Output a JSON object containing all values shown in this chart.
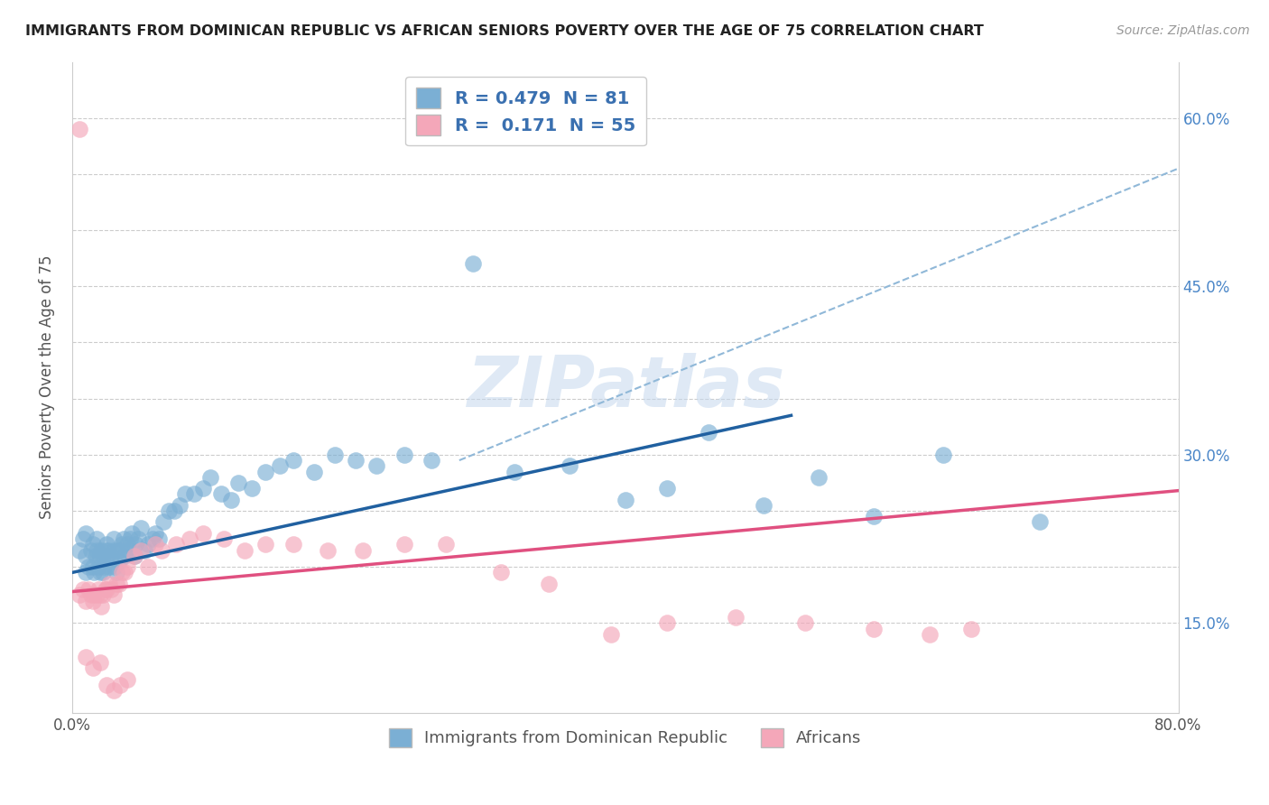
{
  "title": "IMMIGRANTS FROM DOMINICAN REPUBLIC VS AFRICAN SENIORS POVERTY OVER THE AGE OF 75 CORRELATION CHART",
  "source": "Source: ZipAtlas.com",
  "ylabel": "Seniors Poverty Over the Age of 75",
  "xlim": [
    0.0,
    0.8
  ],
  "ylim": [
    0.07,
    0.65
  ],
  "blue_color": "#7bafd4",
  "pink_color": "#f4a7b9",
  "blue_line_color": "#2060a0",
  "pink_line_color": "#e05080",
  "dash_line_color": "#90b8d8",
  "legend_blue_label": "R = 0.479  N = 81",
  "legend_pink_label": "R =  0.171  N = 55",
  "legend_blue_series": "Immigrants from Dominican Republic",
  "legend_pink_series": "Africans",
  "watermark": "ZIPatlas",
  "blue_line_x0": 0.0,
  "blue_line_y0": 0.195,
  "blue_line_x1": 0.52,
  "blue_line_y1": 0.335,
  "pink_line_x0": 0.0,
  "pink_line_y0": 0.178,
  "pink_line_x1": 0.8,
  "pink_line_y1": 0.268,
  "dash_line_x0": 0.28,
  "dash_line_y0": 0.295,
  "dash_line_x1": 0.8,
  "dash_line_y1": 0.555,
  "blue_scatter_x": [
    0.005,
    0.008,
    0.01,
    0.01,
    0.01,
    0.012,
    0.014,
    0.015,
    0.015,
    0.016,
    0.017,
    0.018,
    0.018,
    0.019,
    0.02,
    0.02,
    0.021,
    0.022,
    0.022,
    0.023,
    0.024,
    0.025,
    0.025,
    0.026,
    0.027,
    0.028,
    0.03,
    0.03,
    0.031,
    0.032,
    0.033,
    0.034,
    0.035,
    0.036,
    0.037,
    0.038,
    0.04,
    0.041,
    0.042,
    0.043,
    0.045,
    0.046,
    0.048,
    0.05,
    0.052,
    0.055,
    0.058,
    0.06,
    0.063,
    0.066,
    0.07,
    0.074,
    0.078,
    0.082,
    0.088,
    0.095,
    0.1,
    0.108,
    0.115,
    0.12,
    0.13,
    0.14,
    0.15,
    0.16,
    0.175,
    0.19,
    0.205,
    0.22,
    0.24,
    0.26,
    0.29,
    0.32,
    0.36,
    0.4,
    0.43,
    0.46,
    0.5,
    0.54,
    0.58,
    0.63,
    0.7
  ],
  "blue_scatter_y": [
    0.215,
    0.225,
    0.195,
    0.21,
    0.23,
    0.2,
    0.215,
    0.2,
    0.22,
    0.195,
    0.21,
    0.215,
    0.225,
    0.2,
    0.195,
    0.21,
    0.215,
    0.195,
    0.21,
    0.2,
    0.215,
    0.21,
    0.22,
    0.215,
    0.2,
    0.21,
    0.215,
    0.225,
    0.2,
    0.195,
    0.215,
    0.205,
    0.215,
    0.22,
    0.225,
    0.21,
    0.22,
    0.215,
    0.225,
    0.23,
    0.21,
    0.22,
    0.225,
    0.235,
    0.215,
    0.22,
    0.225,
    0.23,
    0.225,
    0.24,
    0.25,
    0.25,
    0.255,
    0.265,
    0.265,
    0.27,
    0.28,
    0.265,
    0.26,
    0.275,
    0.27,
    0.285,
    0.29,
    0.295,
    0.285,
    0.3,
    0.295,
    0.29,
    0.3,
    0.295,
    0.47,
    0.285,
    0.29,
    0.26,
    0.27,
    0.32,
    0.255,
    0.28,
    0.245,
    0.3,
    0.24
  ],
  "pink_scatter_x": [
    0.005,
    0.008,
    0.01,
    0.012,
    0.014,
    0.015,
    0.016,
    0.018,
    0.019,
    0.02,
    0.021,
    0.022,
    0.024,
    0.025,
    0.027,
    0.028,
    0.03,
    0.032,
    0.034,
    0.036,
    0.038,
    0.04,
    0.045,
    0.05,
    0.055,
    0.06,
    0.065,
    0.075,
    0.085,
    0.095,
    0.11,
    0.125,
    0.14,
    0.16,
    0.185,
    0.21,
    0.24,
    0.27,
    0.31,
    0.345,
    0.39,
    0.43,
    0.48,
    0.53,
    0.58,
    0.62,
    0.65,
    0.005,
    0.01,
    0.015,
    0.02,
    0.025,
    0.03,
    0.035,
    0.04
  ],
  "pink_scatter_y": [
    0.175,
    0.18,
    0.17,
    0.18,
    0.175,
    0.17,
    0.175,
    0.175,
    0.18,
    0.175,
    0.165,
    0.175,
    0.18,
    0.18,
    0.185,
    0.18,
    0.175,
    0.185,
    0.185,
    0.195,
    0.195,
    0.2,
    0.21,
    0.215,
    0.2,
    0.22,
    0.215,
    0.22,
    0.225,
    0.23,
    0.225,
    0.215,
    0.22,
    0.22,
    0.215,
    0.215,
    0.22,
    0.22,
    0.195,
    0.185,
    0.14,
    0.15,
    0.155,
    0.15,
    0.145,
    0.14,
    0.145,
    0.59,
    0.12,
    0.11,
    0.115,
    0.095,
    0.09,
    0.095,
    0.1
  ]
}
